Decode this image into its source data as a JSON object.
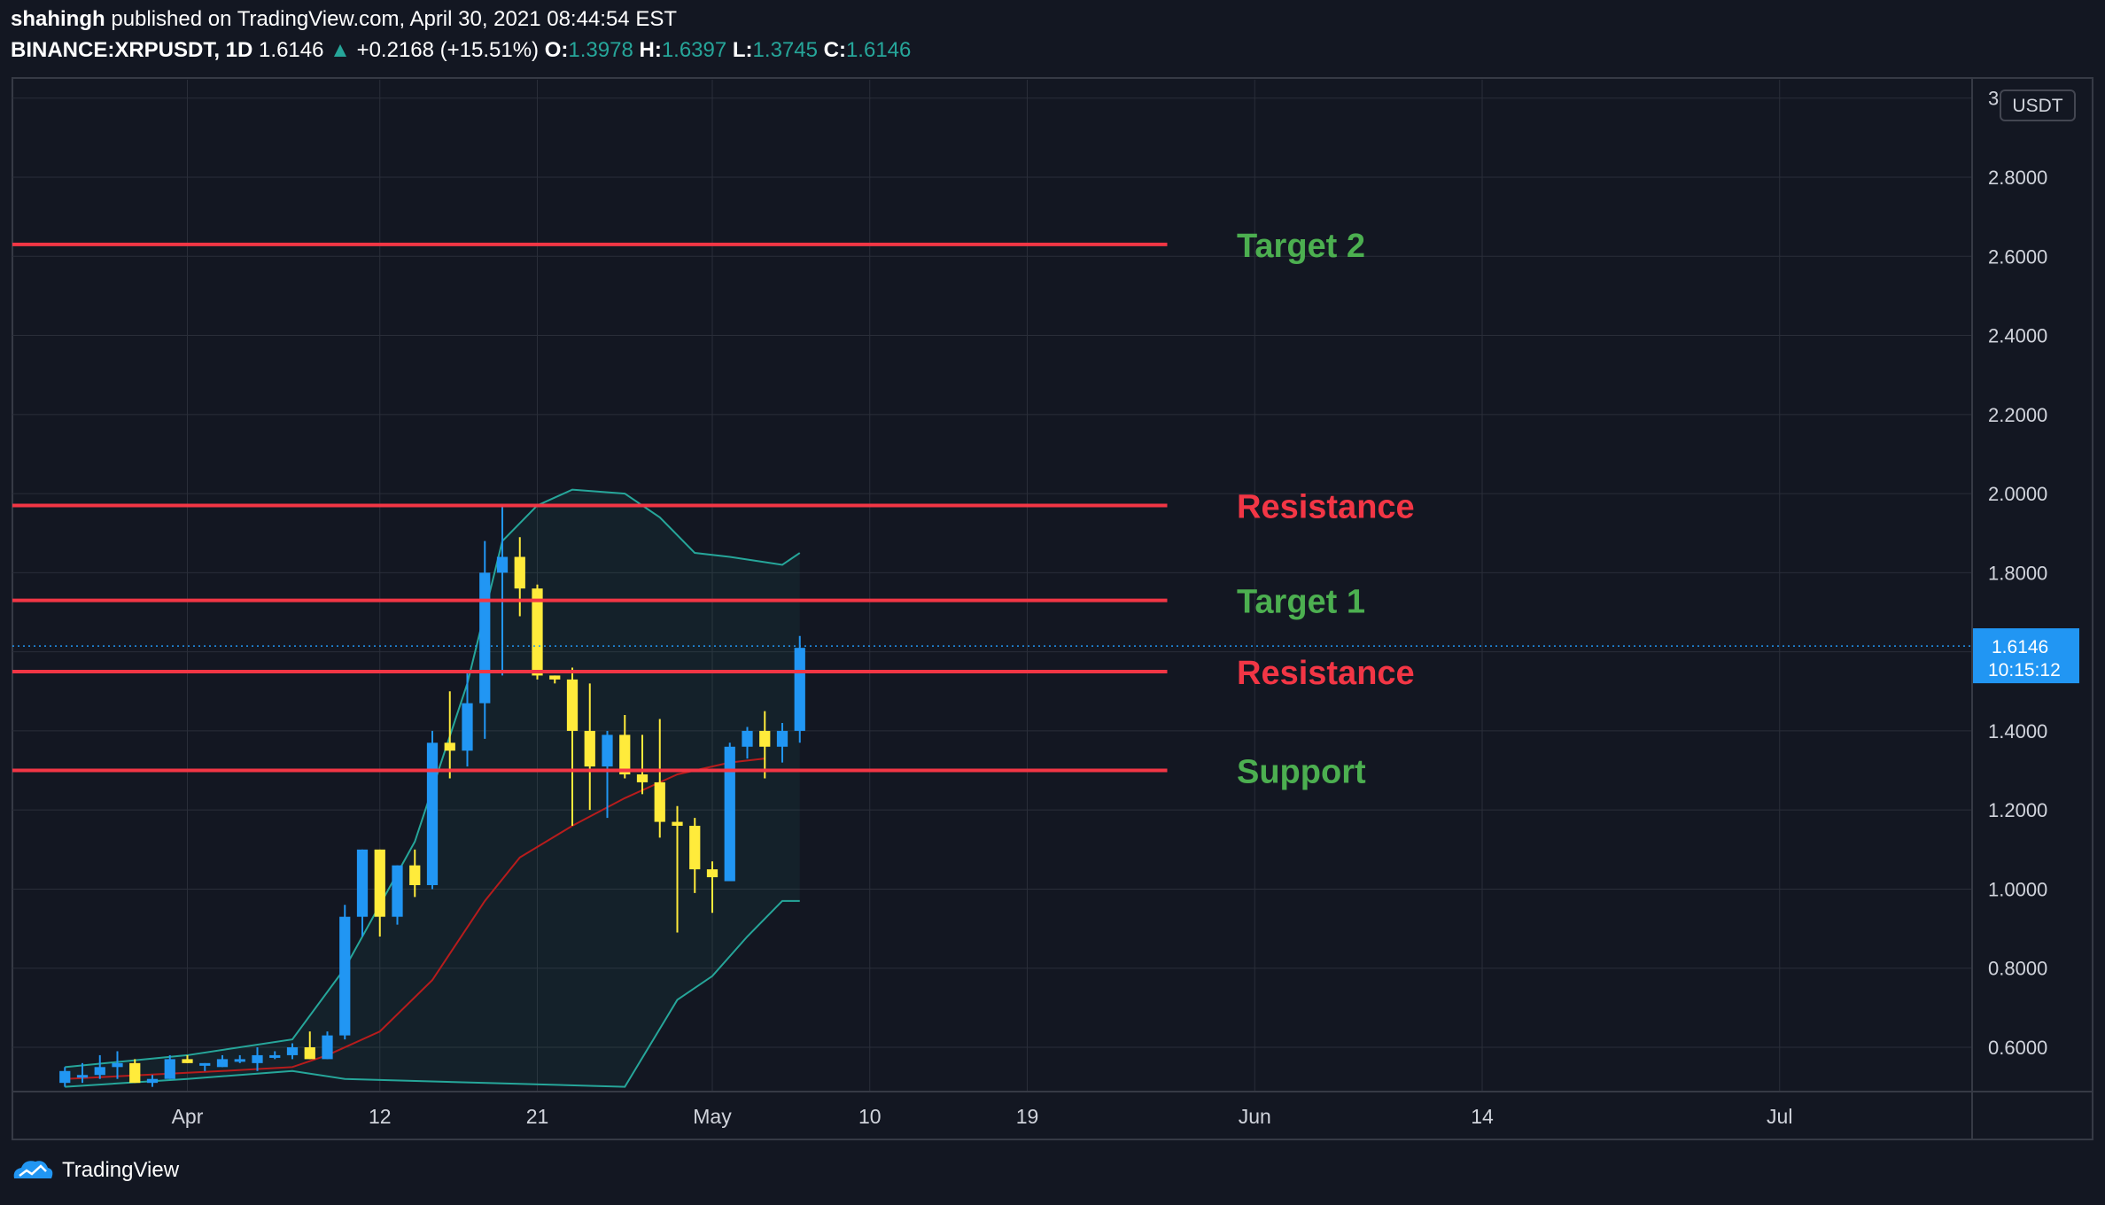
{
  "header": {
    "author": "shahingh",
    "published_text": "published on TradingView.com, April 30, 2021 08:44:54 EST",
    "symbol": "BINANCE:XRPUSDT, 1D",
    "last_price": "1.6146",
    "change_arrow": "▲",
    "change": "+0.2168 (+15.51%)",
    "o_label": "O:",
    "o_value": "1.3978",
    "h_label": "H:",
    "h_value": "1.6397",
    "l_label": "L:",
    "l_value": "1.3745",
    "c_label": "C:",
    "c_value": "1.6146"
  },
  "price_axis": {
    "currency": "USDT",
    "current_price": "1.6146",
    "countdown": "10:15:12"
  },
  "footer": {
    "brand": "TradingView"
  },
  "colors": {
    "background": "#131722",
    "up_candle": "#2196f3",
    "down_candle": "#ffeb3b",
    "level_line": "#f23645",
    "label_green": "#4caf50",
    "label_red": "#f23645",
    "bollinger_band": "#26a69a",
    "basis_line": "#b71c1c",
    "price_badge": "#2196f3"
  },
  "chart_data": {
    "type": "candlestick",
    "ylim": [
      0.5,
      3.0
    ],
    "yticks": [
      "0.6000",
      "0.8000",
      "1.0000",
      "1.2000",
      "1.4000",
      "1.6000",
      "1.8000",
      "2.0000",
      "2.2000",
      "2.4000",
      "2.6000",
      "2.8000",
      "3"
    ],
    "x_date_range": [
      "2021-03-22",
      "2021-07-12"
    ],
    "xticks": [
      {
        "label": "Apr",
        "date": "2021-04-01"
      },
      {
        "label": "12",
        "date": "2021-04-12"
      },
      {
        "label": "21",
        "date": "2021-04-21"
      },
      {
        "label": "May",
        "date": "2021-05-01"
      },
      {
        "label": "10",
        "date": "2021-05-10"
      },
      {
        "label": "19",
        "date": "2021-05-19"
      },
      {
        "label": "Jun",
        "date": "2021-06-01"
      },
      {
        "label": "14",
        "date": "2021-06-14"
      },
      {
        "label": "Jul",
        "date": "2021-07-01"
      }
    ],
    "candles": [
      {
        "d": "2021-03-25",
        "o": 0.51,
        "h": 0.55,
        "l": 0.5,
        "c": 0.54
      },
      {
        "d": "2021-03-26",
        "o": 0.53,
        "h": 0.56,
        "l": 0.51,
        "c": 0.53
      },
      {
        "d": "2021-03-27",
        "o": 0.53,
        "h": 0.58,
        "l": 0.52,
        "c": 0.55
      },
      {
        "d": "2021-03-28",
        "o": 0.55,
        "h": 0.59,
        "l": 0.52,
        "c": 0.56
      },
      {
        "d": "2021-03-29",
        "o": 0.56,
        "h": 0.57,
        "l": 0.51,
        "c": 0.51
      },
      {
        "d": "2021-03-30",
        "o": 0.51,
        "h": 0.53,
        "l": 0.5,
        "c": 0.52
      },
      {
        "d": "2021-03-31",
        "o": 0.52,
        "h": 0.58,
        "l": 0.52,
        "c": 0.57
      },
      {
        "d": "2021-04-01",
        "o": 0.57,
        "h": 0.58,
        "l": 0.56,
        "c": 0.56
      },
      {
        "d": "2021-04-02",
        "o": 0.56,
        "h": 0.56,
        "l": 0.54,
        "c": 0.56
      },
      {
        "d": "2021-04-03",
        "o": 0.55,
        "h": 0.58,
        "l": 0.55,
        "c": 0.57
      },
      {
        "d": "2021-04-04",
        "o": 0.57,
        "h": 0.58,
        "l": 0.56,
        "c": 0.57
      },
      {
        "d": "2021-04-05",
        "o": 0.56,
        "h": 0.6,
        "l": 0.54,
        "c": 0.58
      },
      {
        "d": "2021-04-06",
        "o": 0.58,
        "h": 0.59,
        "l": 0.57,
        "c": 0.58
      },
      {
        "d": "2021-04-07",
        "o": 0.58,
        "h": 0.61,
        "l": 0.57,
        "c": 0.6
      },
      {
        "d": "2021-04-08",
        "o": 0.6,
        "h": 0.64,
        "l": 0.57,
        "c": 0.57
      },
      {
        "d": "2021-04-09",
        "o": 0.57,
        "h": 0.64,
        "l": 0.57,
        "c": 0.63
      },
      {
        "d": "2021-04-10",
        "o": 0.63,
        "h": 0.96,
        "l": 0.62,
        "c": 0.93
      },
      {
        "d": "2021-04-11",
        "o": 0.93,
        "h": 1.1,
        "l": 0.88,
        "c": 1.1
      },
      {
        "d": "2021-04-12",
        "o": 1.1,
        "h": 1.1,
        "l": 0.88,
        "c": 0.93
      },
      {
        "d": "2021-04-13",
        "o": 0.93,
        "h": 1.06,
        "l": 0.91,
        "c": 1.06
      },
      {
        "d": "2021-04-14",
        "o": 1.06,
        "h": 1.1,
        "l": 0.98,
        "c": 1.01
      },
      {
        "d": "2021-04-15",
        "o": 1.01,
        "h": 1.4,
        "l": 1.0,
        "c": 1.37
      },
      {
        "d": "2021-04-16",
        "o": 1.37,
        "h": 1.5,
        "l": 1.28,
        "c": 1.35
      },
      {
        "d": "2021-04-17",
        "o": 1.35,
        "h": 1.55,
        "l": 1.31,
        "c": 1.47
      },
      {
        "d": "2021-04-18",
        "o": 1.47,
        "h": 1.88,
        "l": 1.38,
        "c": 1.8
      },
      {
        "d": "2021-04-19",
        "o": 1.8,
        "h": 1.97,
        "l": 1.54,
        "c": 1.84
      },
      {
        "d": "2021-04-20",
        "o": 1.84,
        "h": 1.89,
        "l": 1.69,
        "c": 1.76
      },
      {
        "d": "2021-04-21",
        "o": 1.76,
        "h": 1.77,
        "l": 1.53,
        "c": 1.54
      },
      {
        "d": "2021-04-22",
        "o": 1.54,
        "h": 1.54,
        "l": 1.52,
        "c": 1.53
      },
      {
        "d": "2021-04-23",
        "o": 1.53,
        "h": 1.56,
        "l": 1.16,
        "c": 1.4
      },
      {
        "d": "2021-04-24",
        "o": 1.4,
        "h": 1.52,
        "l": 1.2,
        "c": 1.31
      },
      {
        "d": "2021-04-25",
        "o": 1.31,
        "h": 1.4,
        "l": 1.18,
        "c": 1.39
      },
      {
        "d": "2021-04-26",
        "o": 1.39,
        "h": 1.44,
        "l": 1.28,
        "c": 1.29
      },
      {
        "d": "2021-04-27",
        "o": 1.29,
        "h": 1.39,
        "l": 1.24,
        "c": 1.27
      },
      {
        "d": "2021-04-28",
        "o": 1.27,
        "h": 1.43,
        "l": 1.13,
        "c": 1.17
      },
      {
        "d": "2021-04-29",
        "o": 1.17,
        "h": 1.21,
        "l": 0.89,
        "c": 1.16
      },
      {
        "d": "2021-04-30",
        "o": 1.16,
        "h": 1.18,
        "l": 0.99,
        "c": 1.05
      },
      {
        "d": "2021-05-01",
        "o": 1.05,
        "h": 1.07,
        "l": 0.94,
        "c": 1.03
      },
      {
        "d": "2021-05-02",
        "o": 1.02,
        "h": 1.37,
        "l": 1.02,
        "c": 1.36
      },
      {
        "d": "2021-05-03",
        "o": 1.36,
        "h": 1.41,
        "l": 1.33,
        "c": 1.4
      },
      {
        "d": "2021-05-04",
        "o": 1.4,
        "h": 1.45,
        "l": 1.28,
        "c": 1.36
      },
      {
        "d": "2021-05-05",
        "o": 1.36,
        "h": 1.42,
        "l": 1.32,
        "c": 1.4
      },
      {
        "d": "2021-05-06",
        "o": 1.4,
        "h": 1.64,
        "l": 1.37,
        "c": 1.61
      }
    ],
    "bollinger_upper": [
      {
        "d": "2021-03-25",
        "v": 0.55
      },
      {
        "d": "2021-04-01",
        "v": 0.58
      },
      {
        "d": "2021-04-07",
        "v": 0.62
      },
      {
        "d": "2021-04-10",
        "v": 0.8
      },
      {
        "d": "2021-04-14",
        "v": 1.12
      },
      {
        "d": "2021-04-17",
        "v": 1.52
      },
      {
        "d": "2021-04-19",
        "v": 1.88
      },
      {
        "d": "2021-04-21",
        "v": 1.97
      },
      {
        "d": "2021-04-23",
        "v": 2.01
      },
      {
        "d": "2021-04-26",
        "v": 2.0
      },
      {
        "d": "2021-04-28",
        "v": 1.94
      },
      {
        "d": "2021-04-30",
        "v": 1.85
      },
      {
        "d": "2021-05-02",
        "v": 1.84
      },
      {
        "d": "2021-05-05",
        "v": 1.82
      },
      {
        "d": "2021-05-06",
        "v": 1.85
      }
    ],
    "bollinger_lower": [
      {
        "d": "2021-03-25",
        "v": 0.5
      },
      {
        "d": "2021-04-01",
        "v": 0.52
      },
      {
        "d": "2021-04-07",
        "v": 0.54
      },
      {
        "d": "2021-04-10",
        "v": 0.52
      },
      {
        "d": "2021-04-26",
        "v": 0.5
      },
      {
        "d": "2021-04-29",
        "v": 0.72
      },
      {
        "d": "2021-05-01",
        "v": 0.78
      },
      {
        "d": "2021-05-03",
        "v": 0.88
      },
      {
        "d": "2021-05-05",
        "v": 0.97
      },
      {
        "d": "2021-05-06",
        "v": 0.97
      }
    ],
    "basis": [
      {
        "d": "2021-03-25",
        "v": 0.52
      },
      {
        "d": "2021-04-03",
        "v": 0.54
      },
      {
        "d": "2021-04-07",
        "v": 0.55
      },
      {
        "d": "2021-04-09",
        "v": 0.58
      },
      {
        "d": "2021-04-12",
        "v": 0.64
      },
      {
        "d": "2021-04-15",
        "v": 0.77
      },
      {
        "d": "2021-04-18",
        "v": 0.97
      },
      {
        "d": "2021-04-20",
        "v": 1.08
      },
      {
        "d": "2021-04-23",
        "v": 1.16
      },
      {
        "d": "2021-04-26",
        "v": 1.23
      },
      {
        "d": "2021-04-29",
        "v": 1.29
      },
      {
        "d": "2021-05-02",
        "v": 1.32
      },
      {
        "d": "2021-05-04",
        "v": 1.33
      }
    ],
    "levels": [
      {
        "price": 2.63,
        "label": "Target 2",
        "color": "green"
      },
      {
        "price": 1.97,
        "label": "Resistance",
        "color": "red"
      },
      {
        "price": 1.73,
        "label": "Target 1",
        "color": "green"
      },
      {
        "price": 1.55,
        "label": "Resistance",
        "color": "red"
      },
      {
        "price": 1.3,
        "label": "Support",
        "color": "green"
      }
    ],
    "current_price_line": 1.6146
  }
}
